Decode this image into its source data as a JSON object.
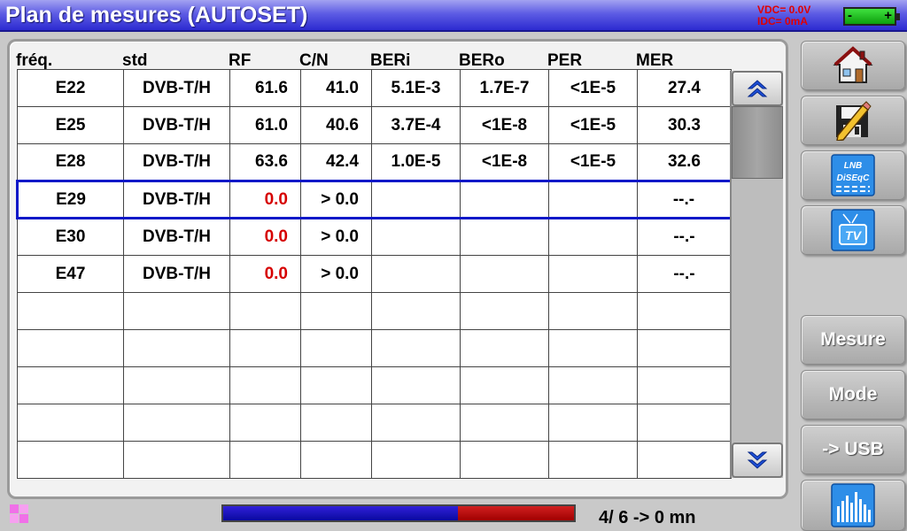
{
  "title": "Plan de mesures (AUTOSET)",
  "power": {
    "vdc": "VDC= 0.0V",
    "idc": "IDC= 0mA",
    "battery_minus": "-",
    "battery_plus": "+"
  },
  "table": {
    "headers": [
      "fréq.",
      "std",
      "RF",
      "C/N",
      "BERi",
      "BERo",
      "PER",
      "MER"
    ],
    "rows": [
      [
        "E22",
        "DVB-T/H",
        "61.6",
        "41.0",
        "5.1E-3",
        "1.7E-7",
        "<1E-5",
        "27.4"
      ],
      [
        "E25",
        "DVB-T/H",
        "61.0",
        "40.6",
        "3.7E-4",
        "<1E-8",
        "<1E-5",
        "30.3"
      ],
      [
        "E28",
        "DVB-T/H",
        "63.6",
        "42.4",
        "1.0E-5",
        "<1E-8",
        "<1E-5",
        "32.6"
      ],
      [
        "E29",
        "DVB-T/H",
        "0.0",
        "> 0.0",
        "",
        "",
        "",
        "--.-"
      ],
      [
        "E30",
        "DVB-T/H",
        "0.0",
        "> 0.0",
        "",
        "",
        "",
        "--.-"
      ],
      [
        "E47",
        "DVB-T/H",
        "0.0",
        "> 0.0",
        "",
        "",
        "",
        "--.-"
      ],
      [
        "",
        "",
        "",
        "",
        "",
        "",
        "",
        ""
      ],
      [
        "",
        "",
        "",
        "",
        "",
        "",
        "",
        ""
      ],
      [
        "",
        "",
        "",
        "",
        "",
        "",
        "",
        ""
      ],
      [
        "",
        "",
        "",
        "",
        "",
        "",
        "",
        ""
      ],
      [
        "",
        "",
        "",
        "",
        "",
        "",
        "",
        ""
      ]
    ],
    "selected_row": 3,
    "red_rf_rows": [
      3,
      4,
      5
    ]
  },
  "sidebar": {
    "icon_buttons": [
      {
        "name": "home-icon"
      },
      {
        "name": "save-edit-icon"
      },
      {
        "name": "lnb-diseqc-icon",
        "line1": "LNB",
        "line2": "DiSEqC"
      },
      {
        "name": "tv-icon",
        "text": "TV"
      }
    ],
    "text_buttons": [
      "Mesure",
      "Mode",
      "-> USB"
    ],
    "spectrum_button": {
      "name": "spectrum-icon"
    }
  },
  "status": {
    "progress_fraction": 0.67,
    "text": "4/ 6 -> 0 mn"
  },
  "colors": {
    "title_bar": "#2c2ad0",
    "selected_row_border": "#0f18c8",
    "value_red": "#d60000",
    "progress_fill": "#0a0aa0",
    "progress_rest": "#a00000"
  }
}
